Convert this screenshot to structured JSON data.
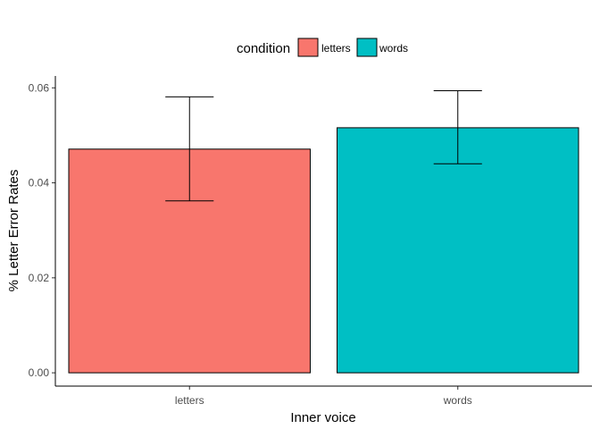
{
  "chart_data": {
    "type": "bar",
    "categories": [
      "letters",
      "words"
    ],
    "values": [
      0.0471,
      0.0516
    ],
    "error_low": [
      0.0362,
      0.044
    ],
    "error_high": [
      0.0581,
      0.0594
    ],
    "colors": [
      "#F8766D",
      "#00BFC4"
    ],
    "title": "",
    "xlabel": "Inner voice",
    "ylabel": "% Letter Error Rates",
    "ylim": [
      -0.0028,
      0.0625
    ],
    "yticks": [
      0.0,
      0.02,
      0.04,
      0.06
    ],
    "ytick_labels": [
      "0.00",
      "0.02",
      "0.04",
      "0.06"
    ],
    "grid": false,
    "legend": {
      "title": "condition",
      "position": "top",
      "entries": [
        "letters",
        "words"
      ]
    }
  }
}
